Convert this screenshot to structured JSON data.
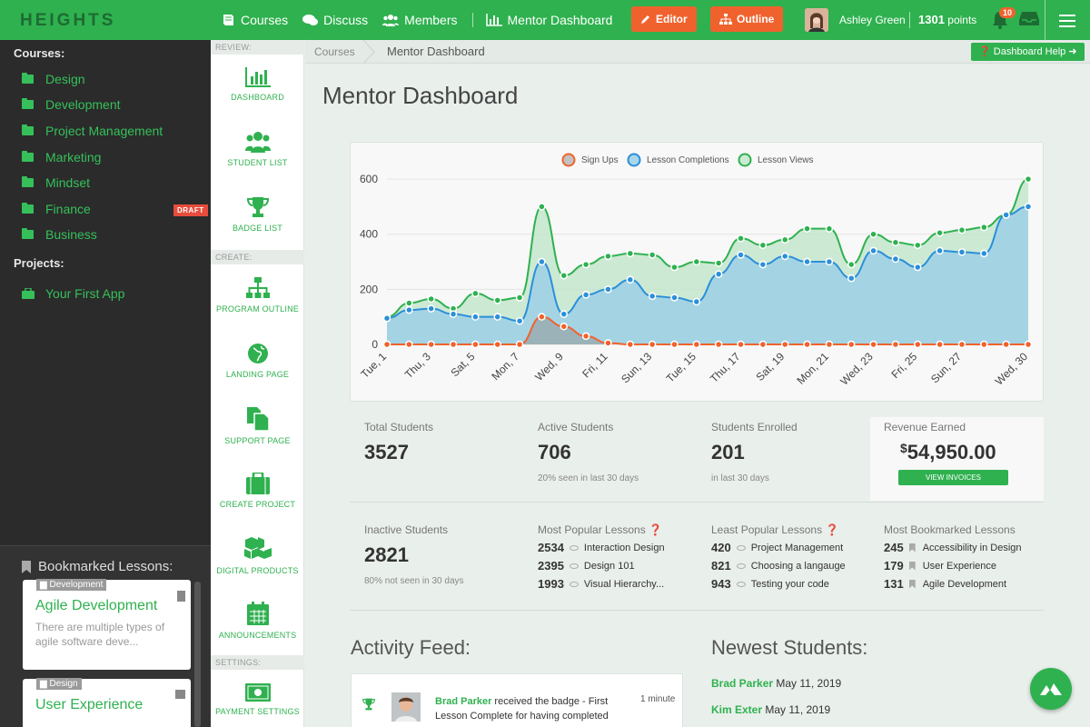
{
  "topbar": {
    "logo": "HEIGHTS",
    "nav": [
      {
        "label": "Courses",
        "icon": "book-icon"
      },
      {
        "label": "Discuss",
        "icon": "chat-icon"
      },
      {
        "label": "Members",
        "icon": "members-icon"
      },
      {
        "label": "Mentor Dashboard",
        "icon": "bar-chart-icon"
      }
    ],
    "editor_label": "Editor",
    "outline_label": "Outline",
    "user_name": "Ashley Green",
    "points_value": "1301",
    "points_unit": "points",
    "notification_count": "10"
  },
  "sidebar": {
    "courses_title": "Courses:",
    "courses": [
      "Design",
      "Development",
      "Project Management",
      "Marketing",
      "Mindset",
      "Finance",
      "Business"
    ],
    "draft_label": "DRAFT",
    "projects_title": "Projects:",
    "projects": [
      "Your First App"
    ],
    "bookmarks_title": "Bookmarked Lessons:",
    "bookmarks": [
      {
        "tag": "Development",
        "title": "Agile Development",
        "text": "There are multiple types of agile software deve..."
      },
      {
        "tag": "Design",
        "title": "User Experience",
        "text": ""
      }
    ]
  },
  "tools": {
    "review_label": "REVIEW:",
    "create_label": "CREATE:",
    "settings_label": "SETTINGS:",
    "items": [
      "DASHBOARD",
      "STUDENT LIST",
      "BADGE LIST",
      "PROGRAM OUTLINE",
      "LANDING PAGE",
      "SUPPORT PAGE",
      "CREATE PROJECT",
      "DIGITAL PRODUCTS",
      "ANNOUNCEMENTS",
      "PAYMENT SETTINGS"
    ]
  },
  "breadcrumb": {
    "root": "Courses",
    "current": "Mentor Dashboard",
    "help": "Dashboard Help"
  },
  "page_title": "Mentor Dashboard",
  "chart_data": {
    "type": "area",
    "x": [
      "Tue, 1",
      "Wed, 2",
      "Thu, 3",
      "Fri, 4",
      "Sat, 5",
      "Sun, 6",
      "Mon, 7",
      "Tue, 8",
      "Wed, 9",
      "Thu, 10",
      "Fri, 11",
      "Sat, 12",
      "Sun, 13",
      "Mon, 14",
      "Tue, 15",
      "Wed, 16",
      "Thu, 17",
      "Fri, 18",
      "Sat, 19",
      "Sun, 20",
      "Mon, 21",
      "Tue, 22",
      "Wed, 23",
      "Thu, 24",
      "Fri, 25",
      "Sat, 26",
      "Sun, 27",
      "Mon, 28",
      "Tue, 29",
      "Wed, 30"
    ],
    "x_tick_labels": [
      "Tue, 1",
      "Thu, 3",
      "Sat, 5",
      "Mon, 7",
      "Wed, 9",
      "Fri, 11",
      "Sun, 13",
      "Tue, 15",
      "Thu, 17",
      "Sat, 19",
      "Mon, 21",
      "Wed, 23",
      "Fri, 25",
      "Sun, 27",
      "Wed, 30"
    ],
    "series": [
      {
        "name": "Sign Ups",
        "color": "#f0622d",
        "values": [
          0,
          0,
          0,
          0,
          0,
          0,
          0,
          100,
          65,
          30,
          5,
          0,
          0,
          0,
          0,
          0,
          0,
          0,
          0,
          0,
          0,
          0,
          0,
          0,
          0,
          0,
          0,
          0,
          0,
          0
        ]
      },
      {
        "name": "Lesson Completions",
        "color": "#2b8fd9",
        "values": [
          95,
          125,
          130,
          110,
          100,
          100,
          85,
          300,
          110,
          180,
          200,
          235,
          175,
          170,
          155,
          255,
          325,
          290,
          320,
          300,
          300,
          240,
          340,
          310,
          280,
          340,
          335,
          330,
          470,
          500
        ]
      },
      {
        "name": "Lesson Views",
        "color": "#2fb14f",
        "values": [
          100,
          150,
          165,
          130,
          185,
          160,
          170,
          500,
          250,
          290,
          320,
          330,
          325,
          280,
          300,
          295,
          385,
          360,
          380,
          420,
          420,
          290,
          400,
          370,
          360,
          405,
          415,
          425,
          470,
          600
        ]
      }
    ],
    "yticks": [
      0,
      200,
      400,
      600
    ],
    "ylim": [
      0,
      620
    ],
    "legend": "top-center",
    "grid": true
  },
  "stats": {
    "total_students": {
      "label": "Total Students",
      "value": "3527"
    },
    "active_students": {
      "label": "Active Students",
      "value": "706",
      "sub": "20% seen in last 30 days"
    },
    "students_enrolled": {
      "label": "Students Enrolled",
      "value": "201",
      "sub": "in last 30 days"
    },
    "revenue": {
      "label": "Revenue Earned",
      "currency": "$",
      "value": "54,950.00",
      "button": "VIEW INVOICES"
    },
    "inactive_students": {
      "label": "Inactive Students",
      "value": "2821",
      "sub": "80% not seen in 30 days"
    },
    "popular": {
      "label": "Most Popular Lessons",
      "items": [
        {
          "count": "2534",
          "name": "Interaction Design"
        },
        {
          "count": "2395",
          "name": "Design 101"
        },
        {
          "count": "1993",
          "name": "Visual Hierarchy..."
        }
      ]
    },
    "least_popular": {
      "label": "Least Popular Lessons",
      "items": [
        {
          "count": "420",
          "name": "Project Management"
        },
        {
          "count": "821",
          "name": "Choosing a langauge"
        },
        {
          "count": "943",
          "name": "Testing your code"
        }
      ]
    },
    "bookmarked": {
      "label": "Most Bookmarked Lessons",
      "items": [
        {
          "count": "245",
          "name": "Accessibility in Design"
        },
        {
          "count": "179",
          "name": "User Experience"
        },
        {
          "count": "131",
          "name": "Agile Development"
        }
      ]
    }
  },
  "activity": {
    "title": "Activity Feed:",
    "item": {
      "name": "Brad Parker",
      "text": " received the badge - First Lesson Complete for having completed",
      "time": "1 minute"
    }
  },
  "newest": {
    "title": "Newest Students:",
    "items": [
      {
        "name": "Brad Parker",
        "date": "May 11, 2019"
      },
      {
        "name": "Kim Exter",
        "date": "May 11, 2019"
      }
    ]
  }
}
